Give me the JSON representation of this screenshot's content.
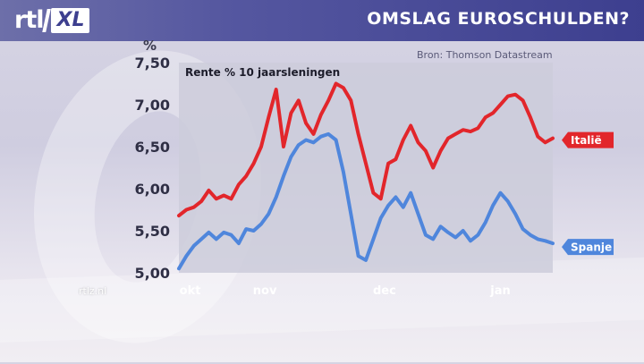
{
  "header": {
    "logo_main": "rtl",
    "logo_sub": "XL",
    "title": "OMSLAG EUROSCHULDEN?"
  },
  "source": "Bron: Thomson Datastream",
  "watermark": "rtlz.nl",
  "colors": {
    "italy": "#e2262b",
    "spain": "#4f86dc",
    "header": "#4a4c98",
    "plot_bg": "#ccccdb"
  },
  "chart_data": {
    "type": "line",
    "title": "Rente % 10 jaarsleningen",
    "unit_label": "%",
    "ylim": [
      5.0,
      7.5
    ],
    "yticks": [
      5.0,
      5.5,
      6.0,
      6.5,
      7.0,
      7.5
    ],
    "ytick_labels": [
      "5,00",
      "5,50",
      "6,00",
      "6,50",
      "7,00",
      "7,50"
    ],
    "xlim": [
      0,
      100
    ],
    "xticks": [
      {
        "pos": 3,
        "label": "okt"
      },
      {
        "pos": 23,
        "label": "nov"
      },
      {
        "pos": 55,
        "label": "dec"
      },
      {
        "pos": 86,
        "label": "jan"
      }
    ],
    "grid": false,
    "legend": "inline-right",
    "series": [
      {
        "name": "Italië",
        "color": "#e2262b",
        "x": [
          0,
          2,
          4,
          6,
          8,
          10,
          12,
          14,
          16,
          18,
          20,
          22,
          24,
          26,
          28,
          30,
          32,
          34,
          36,
          38,
          40,
          42,
          44,
          46,
          48,
          50,
          52,
          54,
          56,
          58,
          60,
          62,
          64,
          66,
          68,
          70,
          72,
          74,
          76,
          78,
          80,
          82,
          84,
          86,
          88,
          90,
          92,
          94,
          96,
          98,
          100
        ],
        "values": [
          5.68,
          5.75,
          5.78,
          5.85,
          5.98,
          5.88,
          5.92,
          5.88,
          6.05,
          6.15,
          6.3,
          6.5,
          6.85,
          7.18,
          6.5,
          6.9,
          7.05,
          6.78,
          6.65,
          6.88,
          7.05,
          7.25,
          7.2,
          7.05,
          6.65,
          6.3,
          5.95,
          5.88,
          6.3,
          6.35,
          6.58,
          6.75,
          6.55,
          6.45,
          6.25,
          6.45,
          6.6,
          6.65,
          6.7,
          6.68,
          6.72,
          6.85,
          6.9,
          7.0,
          7.1,
          7.12,
          7.05,
          6.85,
          6.62,
          6.55,
          6.6
        ]
      },
      {
        "name": "Spanje",
        "color": "#4f86dc",
        "x": [
          0,
          2,
          4,
          6,
          8,
          10,
          12,
          14,
          16,
          18,
          20,
          22,
          24,
          26,
          28,
          30,
          32,
          34,
          36,
          38,
          40,
          42,
          44,
          46,
          48,
          50,
          52,
          54,
          56,
          58,
          60,
          62,
          64,
          66,
          68,
          70,
          72,
          74,
          76,
          78,
          80,
          82,
          84,
          86,
          88,
          90,
          92,
          94,
          96,
          98,
          100
        ],
        "values": [
          5.05,
          5.2,
          5.32,
          5.4,
          5.48,
          5.4,
          5.48,
          5.45,
          5.35,
          5.52,
          5.5,
          5.58,
          5.7,
          5.9,
          6.15,
          6.38,
          6.52,
          6.58,
          6.55,
          6.62,
          6.65,
          6.58,
          6.2,
          5.7,
          5.2,
          5.15,
          5.4,
          5.65,
          5.8,
          5.9,
          5.78,
          5.95,
          5.7,
          5.45,
          5.4,
          5.55,
          5.48,
          5.42,
          5.5,
          5.38,
          5.45,
          5.6,
          5.8,
          5.95,
          5.85,
          5.7,
          5.52,
          5.45,
          5.4,
          5.38,
          5.35
        ]
      }
    ]
  }
}
